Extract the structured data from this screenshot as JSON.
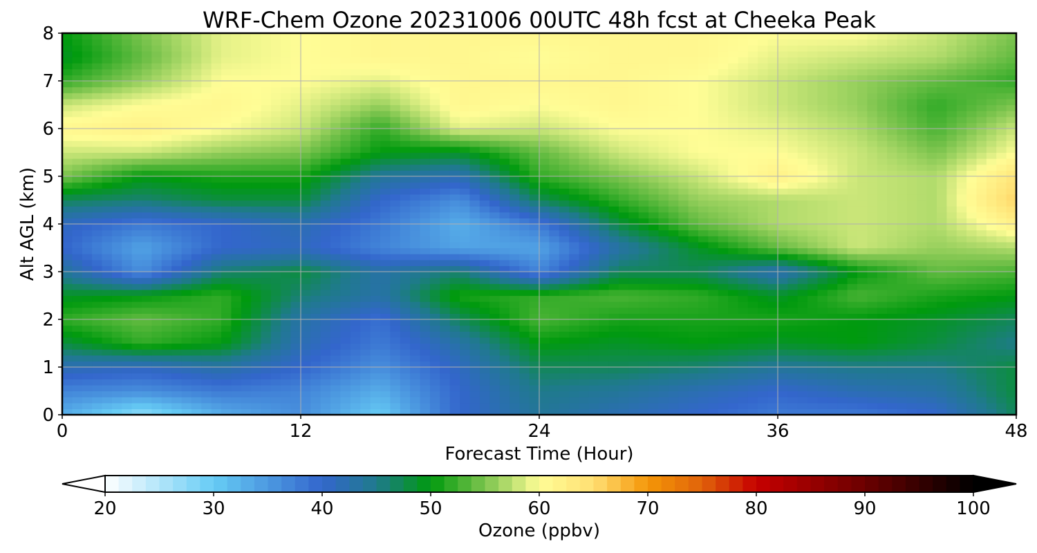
{
  "chart_data": {
    "type": "heatmap",
    "title": "WRF-Chem Ozone  20231006 00UTC 48h fcst at Cheeka Peak",
    "xlabel": "Forecast Time (Hour)",
    "ylabel": "Alt AGL (km)",
    "xlim": [
      0,
      48
    ],
    "ylim": [
      0,
      8
    ],
    "xticks": [
      0,
      12,
      24,
      36,
      48
    ],
    "yticks": [
      0,
      1,
      2,
      3,
      4,
      5,
      6,
      7,
      8
    ],
    "grid": true,
    "x": [
      0,
      4,
      8,
      12,
      16,
      20,
      24,
      28,
      32,
      36,
      40,
      44,
      48
    ],
    "y": [
      0,
      0.5,
      1,
      1.5,
      2,
      2.5,
      3,
      3.5,
      4,
      4.5,
      5,
      5.5,
      6,
      6.5,
      7,
      7.5,
      8
    ],
    "z": [
      [
        33,
        27,
        33,
        36,
        30,
        40,
        44,
        42,
        40,
        38,
        38,
        40,
        47
      ],
      [
        37,
        36,
        38,
        37,
        33,
        40,
        45,
        44,
        42,
        40,
        42,
        43,
        48
      ],
      [
        42,
        41,
        43,
        40,
        36,
        41,
        47,
        47,
        46,
        44,
        45,
        45,
        48
      ],
      [
        48,
        52,
        50,
        42,
        38,
        43,
        50,
        49,
        50,
        49,
        50,
        48,
        45
      ],
      [
        52,
        54,
        52,
        43,
        39,
        47,
        53,
        51,
        51,
        51,
        50,
        49,
        47
      ],
      [
        49,
        50,
        52,
        46,
        43,
        51,
        52,
        53,
        52,
        49,
        53,
        51,
        50
      ],
      [
        44,
        36,
        46,
        48,
        43,
        46,
        37,
        47,
        47,
        42,
        50,
        54,
        53
      ],
      [
        40,
        34,
        40,
        41,
        37,
        34,
        34,
        43,
        49,
        54,
        58,
        56,
        57
      ],
      [
        41,
        38,
        40,
        42,
        38,
        33,
        38,
        48,
        54,
        57,
        58,
        57,
        62
      ],
      [
        47,
        46,
        48,
        48,
        40,
        36,
        47,
        52,
        56,
        57,
        58,
        57,
        66
      ],
      [
        55,
        50,
        51,
        51,
        44,
        42,
        52,
        55,
        58,
        62,
        58,
        57,
        64
      ],
      [
        58,
        58,
        56,
        55,
        50,
        49,
        54,
        58,
        60,
        60,
        58,
        55,
        60
      ],
      [
        61,
        62,
        60,
        58,
        52,
        59,
        58,
        60,
        60,
        59,
        57,
        53,
        58
      ],
      [
        58,
        60,
        61,
        59,
        56,
        61,
        60,
        61,
        60,
        58,
        56,
        52,
        55
      ],
      [
        52,
        56,
        60,
        60,
        59,
        61,
        61,
        61,
        60,
        58,
        56,
        54,
        52
      ],
      [
        49,
        54,
        59,
        60,
        61,
        61,
        60,
        61,
        61,
        59,
        58,
        57,
        54
      ],
      [
        50,
        55,
        59,
        60,
        61,
        61,
        61,
        61,
        61,
        60,
        60,
        58,
        55
      ]
    ],
    "colorbar": {
      "label": "Ozone  (ppbv)",
      "range": [
        20,
        100
      ],
      "ticks": [
        20,
        30,
        40,
        50,
        60,
        70,
        80,
        90,
        100
      ],
      "extend": "both",
      "stops": [
        [
          20,
          "#ffffff"
        ],
        [
          30,
          "#66ccf5"
        ],
        [
          40,
          "#3366cc"
        ],
        [
          45,
          "#1f7a8c"
        ],
        [
          50,
          "#009a0e"
        ],
        [
          55,
          "#7cc44e"
        ],
        [
          60,
          "#fffd96"
        ],
        [
          65,
          "#ffdf73"
        ],
        [
          70,
          "#f59607"
        ],
        [
          75,
          "#e0620a"
        ],
        [
          80,
          "#c60000"
        ],
        [
          90,
          "#6b0000"
        ],
        [
          100,
          "#000000"
        ]
      ]
    }
  }
}
